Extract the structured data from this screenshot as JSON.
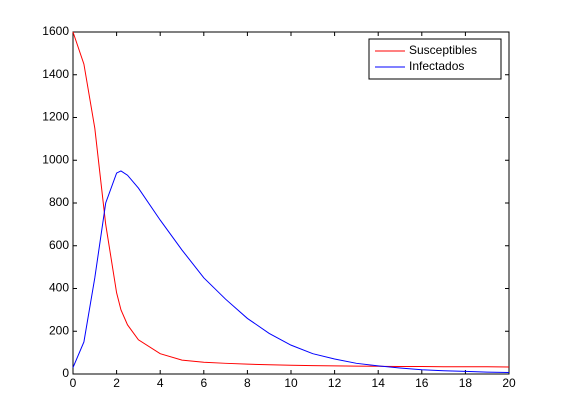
{
  "chart_data": {
    "type": "line",
    "x": [
      0,
      0.5,
      1,
      1.5,
      2,
      2.2,
      2.5,
      3,
      4,
      5,
      6,
      7,
      8,
      9,
      10,
      11,
      12,
      13,
      14,
      15,
      16,
      17,
      18,
      19,
      20
    ],
    "series": [
      {
        "name": "Susceptibles",
        "color": "#ff0000",
        "values": [
          1600,
          1450,
          1150,
          700,
          380,
          300,
          230,
          160,
          95,
          65,
          55,
          50,
          46,
          43,
          41,
          39,
          38,
          37,
          36,
          35,
          35,
          34,
          34,
          34,
          33
        ]
      },
      {
        "name": "Infectados",
        "color": "#0000ff",
        "values": [
          30,
          150,
          450,
          800,
          940,
          950,
          930,
          870,
          720,
          580,
          450,
          350,
          260,
          190,
          135,
          95,
          70,
          50,
          38,
          28,
          20,
          15,
          12,
          9,
          7
        ]
      }
    ],
    "xlim": [
      0,
      20
    ],
    "xticks": [
      0,
      2,
      4,
      6,
      8,
      10,
      12,
      14,
      16,
      18,
      20
    ],
    "ylim": [
      0,
      1600
    ],
    "yticks": [
      0,
      200,
      400,
      600,
      800,
      1000,
      1200,
      1400,
      1600
    ],
    "legend": "northeast"
  }
}
